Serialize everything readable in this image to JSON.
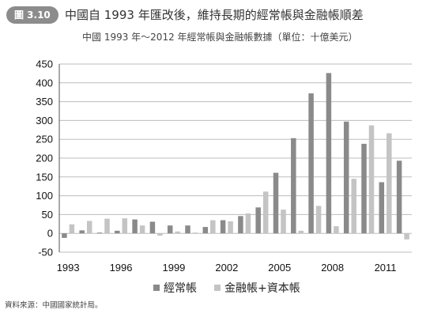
{
  "figure": {
    "badge": "圖 3.10",
    "title": "中國自 1993 年匯改後，維持長期的經常帳與金融帳順差",
    "subtitle": "中國 1993 年～2012 年經常帳與金融帳數據（單位：十億美元）",
    "source": "資料來源：中國國家統計局。"
  },
  "colors": {
    "current_account": "#8a8a8a",
    "financial_account": "#c4c4c4",
    "grid": "#bdbdbd",
    "axis": "#555555"
  },
  "chart_data": {
    "type": "bar",
    "title": "中國 1993 年～2012 年經常帳與金融帳數據（單位：十億美元）",
    "xlabel": "",
    "ylabel": "",
    "ylim": [
      -50,
      450
    ],
    "yticks": [
      -50,
      0,
      50,
      100,
      150,
      200,
      250,
      300,
      350,
      400,
      450
    ],
    "categories": [
      "1993",
      "1994",
      "1995",
      "1996",
      "1997",
      "1998",
      "1999",
      "2000",
      "2001",
      "2002",
      "2003",
      "2004",
      "2005",
      "2006",
      "2007",
      "2008",
      "2009",
      "2010",
      "2011",
      "2012"
    ],
    "xtick_labels": [
      "1993",
      "1996",
      "1999",
      "2002",
      "2005",
      "2008",
      "2011"
    ],
    "grid": true,
    "legend_position": "bottom",
    "series": [
      {
        "name": "經常帳",
        "values": [
          -12,
          8,
          2,
          7,
          37,
          31,
          21,
          21,
          17,
          35,
          46,
          69,
          161,
          253,
          372,
          426,
          297,
          238,
          136,
          193
        ]
      },
      {
        "name": "金融帳+資本帳",
        "values": [
          24,
          33,
          39,
          40,
          21,
          -6,
          5,
          2,
          35,
          32,
          53,
          111,
          63,
          7,
          73,
          19,
          145,
          287,
          266,
          -16
        ]
      }
    ]
  }
}
